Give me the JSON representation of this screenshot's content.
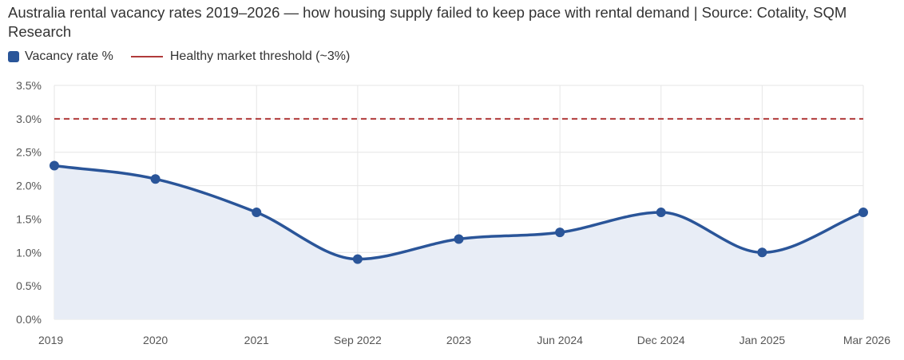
{
  "title": "Australia rental vacancy rates 2019–2026 — how housing supply failed to keep pace with rental demand | Source: Cotality, SQM Research",
  "colors": {
    "series": "#2a5599",
    "area": "#e8edf6",
    "threshold": "#b03a3a",
    "grid": "#e6e6e6"
  },
  "chart_data": {
    "type": "line",
    "x": [
      "2019",
      "2020",
      "2021",
      "Sep 2022",
      "2023",
      "Jun 2024",
      "Dec 2024",
      "Jan 2025",
      "Mar 2026"
    ],
    "series": [
      {
        "name": "Vacancy rate %",
        "values": [
          2.3,
          2.1,
          1.6,
          0.9,
          1.2,
          1.3,
          1.6,
          1.0,
          1.6
        ]
      }
    ],
    "threshold": {
      "name": "Healthy market threshold (~3%)",
      "value": 3.0,
      "style": "dashed"
    },
    "ylim": [
      0,
      3.5
    ],
    "yticks": [
      0,
      0.5,
      1.0,
      1.5,
      2.0,
      2.5,
      3.0,
      3.5
    ],
    "ytick_labels": [
      "0.0%",
      "0.5%",
      "1.0%",
      "1.5%",
      "2.0%",
      "2.5%",
      "3.0%",
      "3.5%"
    ],
    "grid": true,
    "legend_position": "top-left",
    "area_fill": true
  }
}
